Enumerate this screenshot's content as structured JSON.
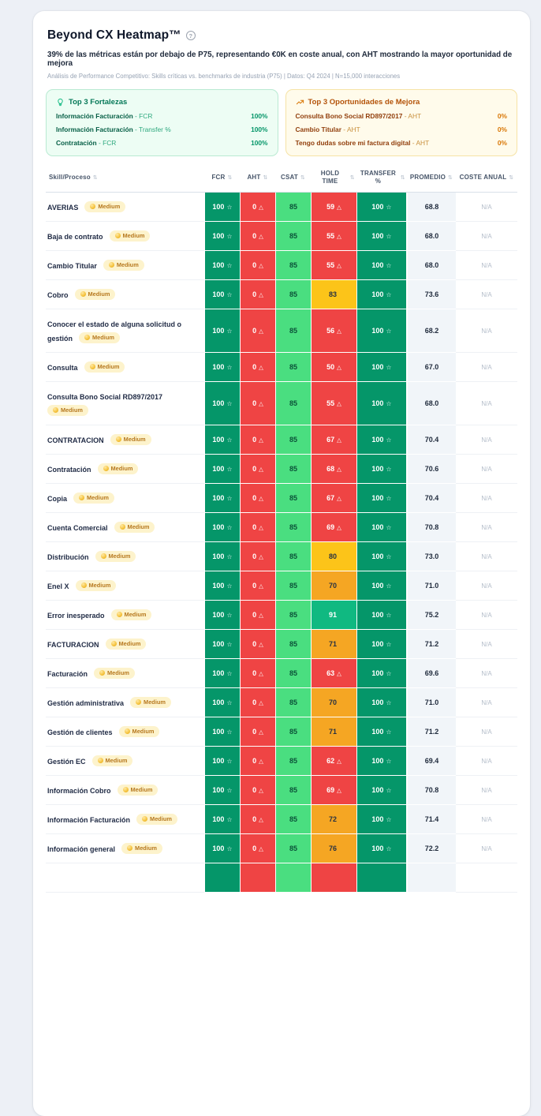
{
  "header": {
    "title": "Beyond CX Heatmap™",
    "help_icon": "help-circle-icon",
    "subtitle": "39% de las métricas están por debajo de P75, representando €0K en coste anual, con AHT mostrando la mayor oportunidad de mejora",
    "meta": "Análisis de Performance Competitivo: Skills críticas vs. benchmarks de industria (P75) | Datos: Q4 2024 | N=15,000 interacciones"
  },
  "panels": {
    "strengths": {
      "icon": "lightbulb-icon",
      "title": "Top 3 Fortalezas",
      "items": [
        {
          "skill": "Información Facturación",
          "metric": "FCR",
          "value": "100%"
        },
        {
          "skill": "Información Facturación",
          "metric": "Transfer %",
          "value": "100%"
        },
        {
          "skill": "Contratación",
          "metric": "FCR",
          "value": "100%"
        }
      ]
    },
    "opportunities": {
      "icon": "trending-up-icon",
      "title": "Top 3 Oportunidades de Mejora",
      "items": [
        {
          "skill": "Consulta Bono Social RD897/2017",
          "metric": "AHT",
          "value": "0%"
        },
        {
          "skill": "Cambio Titular",
          "metric": "AHT",
          "value": "0%"
        },
        {
          "skill": "Tengo dudas sobre mi factura digital",
          "metric": "AHT",
          "value": "0%"
        }
      ]
    }
  },
  "table": {
    "columns": [
      {
        "label": "Skill/Proceso",
        "align": "left"
      },
      {
        "label": "FCR"
      },
      {
        "label": "AHT"
      },
      {
        "label": "CSAT"
      },
      {
        "label": "HOLD TIME"
      },
      {
        "label": "TRANSFER %"
      },
      {
        "label": "PROMEDIO"
      },
      {
        "label": "COSTE ANUAL"
      }
    ],
    "sort_icon": "⇅",
    "star_icon": "☆",
    "warning_icon": "△",
    "rows": [
      {
        "skill": "AVERIAS",
        "badge": "Medium",
        "fcr": "100",
        "aht": "0",
        "csat": "85",
        "hold": "59",
        "hold_level": "red",
        "transfer": "100",
        "promedio": "68.8",
        "coste": "N/A"
      },
      {
        "skill": "Baja de contrato",
        "badge": "Medium",
        "fcr": "100",
        "aht": "0",
        "csat": "85",
        "hold": "55",
        "hold_level": "red",
        "transfer": "100",
        "promedio": "68.0",
        "coste": "N/A"
      },
      {
        "skill": "Cambio Titular",
        "badge": "Medium",
        "fcr": "100",
        "aht": "0",
        "csat": "85",
        "hold": "55",
        "hold_level": "red",
        "transfer": "100",
        "promedio": "68.0",
        "coste": "N/A"
      },
      {
        "skill": "Cobro",
        "badge": "Medium",
        "fcr": "100",
        "aht": "0",
        "csat": "85",
        "hold": "83",
        "hold_level": "yellow",
        "transfer": "100",
        "promedio": "73.6",
        "coste": "N/A"
      },
      {
        "skill": "Conocer el estado de alguna solicitud o gestión",
        "badge": "Medium",
        "fcr": "100",
        "aht": "0",
        "csat": "85",
        "hold": "56",
        "hold_level": "red",
        "transfer": "100",
        "promedio": "68.2",
        "coste": "N/A"
      },
      {
        "skill": "Consulta",
        "badge": "Medium",
        "fcr": "100",
        "aht": "0",
        "csat": "85",
        "hold": "50",
        "hold_level": "red",
        "transfer": "100",
        "promedio": "67.0",
        "coste": "N/A"
      },
      {
        "skill": "Consulta Bono Social RD897/2017",
        "badge": "Medium",
        "fcr": "100",
        "aht": "0",
        "csat": "85",
        "hold": "55",
        "hold_level": "red",
        "transfer": "100",
        "promedio": "68.0",
        "coste": "N/A"
      },
      {
        "skill": "CONTRATACION",
        "badge": "Medium",
        "fcr": "100",
        "aht": "0",
        "csat": "85",
        "hold": "67",
        "hold_level": "red",
        "transfer": "100",
        "promedio": "70.4",
        "coste": "N/A"
      },
      {
        "skill": "Contratación",
        "badge": "Medium",
        "fcr": "100",
        "aht": "0",
        "csat": "85",
        "hold": "68",
        "hold_level": "red",
        "transfer": "100",
        "promedio": "70.6",
        "coste": "N/A"
      },
      {
        "skill": "Copia",
        "badge": "Medium",
        "fcr": "100",
        "aht": "0",
        "csat": "85",
        "hold": "67",
        "hold_level": "red",
        "transfer": "100",
        "promedio": "70.4",
        "coste": "N/A"
      },
      {
        "skill": "Cuenta Comercial",
        "badge": "Medium",
        "fcr": "100",
        "aht": "0",
        "csat": "85",
        "hold": "69",
        "hold_level": "red",
        "transfer": "100",
        "promedio": "70.8",
        "coste": "N/A"
      },
      {
        "skill": "Distribución",
        "badge": "Medium",
        "fcr": "100",
        "aht": "0",
        "csat": "85",
        "hold": "80",
        "hold_level": "yellow",
        "transfer": "100",
        "promedio": "73.0",
        "coste": "N/A"
      },
      {
        "skill": "Enel X",
        "badge": "Medium",
        "fcr": "100",
        "aht": "0",
        "csat": "85",
        "hold": "70",
        "hold_level": "amber",
        "transfer": "100",
        "promedio": "71.0",
        "coste": "N/A"
      },
      {
        "skill": "Error inesperado",
        "badge": "Medium",
        "fcr": "100",
        "aht": "0",
        "csat": "85",
        "hold": "91",
        "hold_level": "emerald",
        "transfer": "100",
        "promedio": "75.2",
        "coste": "N/A"
      },
      {
        "skill": "FACTURACION",
        "badge": "Medium",
        "fcr": "100",
        "aht": "0",
        "csat": "85",
        "hold": "71",
        "hold_level": "amber",
        "transfer": "100",
        "promedio": "71.2",
        "coste": "N/A"
      },
      {
        "skill": "Facturación",
        "badge": "Medium",
        "fcr": "100",
        "aht": "0",
        "csat": "85",
        "hold": "63",
        "hold_level": "red",
        "transfer": "100",
        "promedio": "69.6",
        "coste": "N/A"
      },
      {
        "skill": "Gestión administrativa",
        "badge": "Medium",
        "fcr": "100",
        "aht": "0",
        "csat": "85",
        "hold": "70",
        "hold_level": "amber",
        "transfer": "100",
        "promedio": "71.0",
        "coste": "N/A"
      },
      {
        "skill": "Gestión de clientes",
        "badge": "Medium",
        "fcr": "100",
        "aht": "0",
        "csat": "85",
        "hold": "71",
        "hold_level": "amber",
        "transfer": "100",
        "promedio": "71.2",
        "coste": "N/A"
      },
      {
        "skill": "Gestión EC",
        "badge": "Medium",
        "fcr": "100",
        "aht": "0",
        "csat": "85",
        "hold": "62",
        "hold_level": "red",
        "transfer": "100",
        "promedio": "69.4",
        "coste": "N/A"
      },
      {
        "skill": "Información Cobro",
        "badge": "Medium",
        "fcr": "100",
        "aht": "0",
        "csat": "85",
        "hold": "69",
        "hold_level": "red",
        "transfer": "100",
        "promedio": "70.8",
        "coste": "N/A"
      },
      {
        "skill": "Información Facturación",
        "badge": "Medium",
        "fcr": "100",
        "aht": "0",
        "csat": "85",
        "hold": "72",
        "hold_level": "amber",
        "transfer": "100",
        "promedio": "71.4",
        "coste": "N/A"
      },
      {
        "skill": "Información general",
        "badge": "Medium",
        "fcr": "100",
        "aht": "0",
        "csat": "85",
        "hold": "76",
        "hold_level": "amber",
        "transfer": "100",
        "promedio": "72.2",
        "coste": "N/A"
      },
      {
        "skill": "",
        "badge": "",
        "fcr": "",
        "aht": "",
        "csat": "",
        "hold": "",
        "hold_level": "red",
        "transfer": "",
        "promedio": "",
        "coste": ""
      }
    ]
  },
  "colors": {
    "page_bg": "#edf0f6",
    "heat_green": "#059669",
    "heat_light_green": "#4ade80",
    "heat_red": "#ef4444",
    "heat_yellow": "#fcc419",
    "heat_amber": "#f5a623",
    "heat_emerald": "#10b981",
    "strengths_accent": "#047857",
    "opportunities_accent": "#b45309"
  }
}
